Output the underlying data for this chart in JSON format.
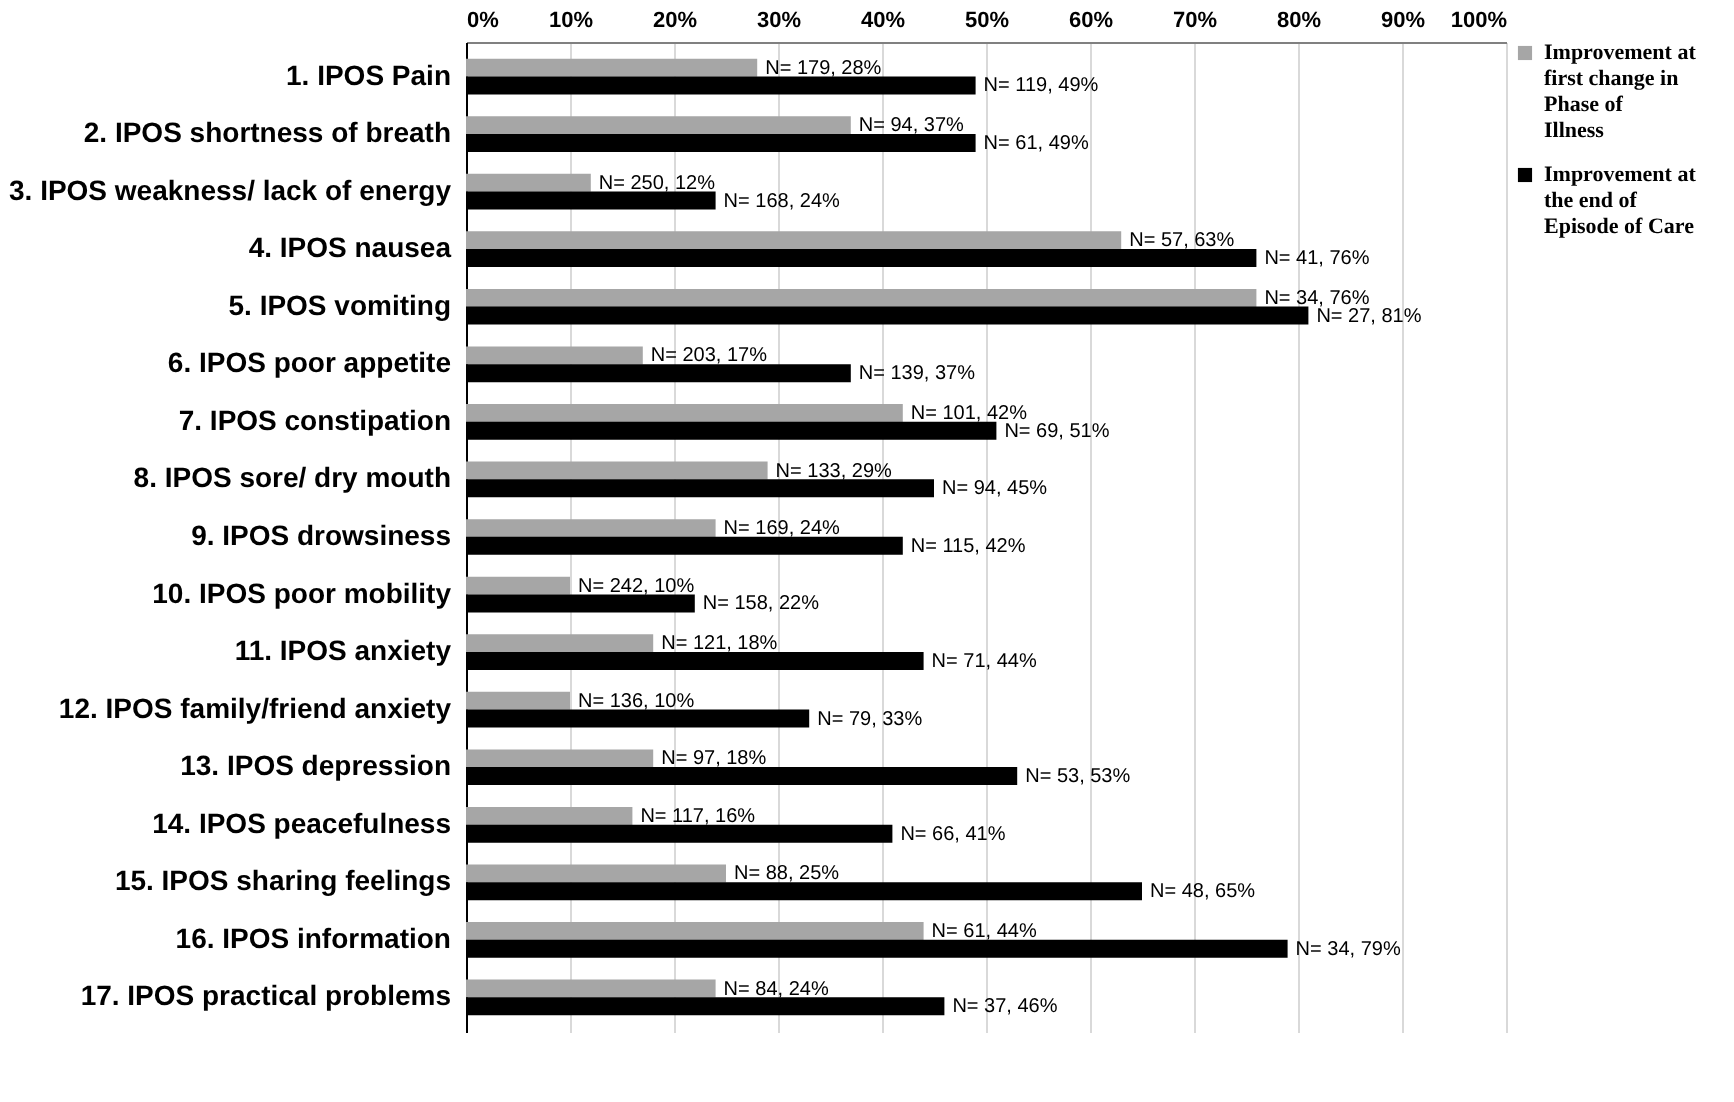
{
  "chart_data": {
    "type": "bar",
    "orientation": "horizontal",
    "categories": [
      "1. IPOS Pain",
      "2. IPOS shortness of breath",
      "3. IPOS weakness/ lack of energy",
      "4. IPOS nausea",
      "5. IPOS vomiting",
      "6. IPOS poor appetite",
      "7. IPOS constipation",
      "8. IPOS sore/ dry mouth",
      "9. IPOS drowsiness",
      "10.  IPOS  poor mobility",
      "11.  IPOS  anxiety",
      "12.  IPOS  family/friend anxiety",
      "13.  IPOS  depression",
      "14.  IPOS  peacefulness",
      "15.  IPOS  sharing feelings",
      "16.  IPOS  information",
      "17.  IPOS  practical problems"
    ],
    "series": [
      {
        "name": "Improvement at first change in Phase of Illness",
        "color": "#a6a6a6",
        "values": [
          28,
          37,
          12,
          63,
          76,
          17,
          42,
          29,
          24,
          10,
          18,
          10,
          18,
          16,
          25,
          44,
          24
        ],
        "value_labels": [
          "N= 179, 28%",
          "N= 94, 37%",
          "N= 250, 12%",
          "N= 57, 63%",
          "N= 34, 76%",
          "N= 203, 17%",
          "N= 101, 42%",
          "N= 133, 29%",
          "N= 169, 24%",
          "N= 242, 10%",
          "N= 121, 18%",
          "N= 136, 10%",
          "N= 97, 18%",
          "N= 117, 16%",
          "N= 88, 25%",
          "N= 61, 44%",
          "N= 84, 24%"
        ]
      },
      {
        "name": "Improvement at the end of Episode of Care",
        "color": "#000000",
        "values": [
          49,
          49,
          24,
          76,
          81,
          37,
          51,
          45,
          42,
          22,
          44,
          33,
          53,
          41,
          65,
          79,
          46
        ],
        "value_labels": [
          "N= 119, 49%",
          "N= 61, 49%",
          "N= 168, 24%",
          "N= 41, 76%",
          "N= 27, 81%",
          "N= 139, 37%",
          "N= 69, 51%",
          "N= 94, 45%",
          "N= 115, 42%",
          "N= 158, 22%",
          "N= 71, 44%",
          "N= 79, 33%",
          "N= 53, 53%",
          "N= 66, 41%",
          "N= 48, 65%",
          "N= 34, 79%",
          "N= 37, 46%"
        ]
      }
    ],
    "xlim": [
      0,
      100
    ],
    "xticks": [
      {
        "value": 0,
        "label": "0%"
      },
      {
        "value": 10,
        "label": "10%"
      },
      {
        "value": 20,
        "label": "20%"
      },
      {
        "value": 30,
        "label": "30%"
      },
      {
        "value": 40,
        "label": "40%"
      },
      {
        "value": 50,
        "label": "50%"
      },
      {
        "value": 60,
        "label": "60%"
      },
      {
        "value": 70,
        "label": "70%"
      },
      {
        "value": 80,
        "label": "80%"
      },
      {
        "value": 90,
        "label": "90%"
      },
      {
        "value": 100,
        "label": "100%"
      }
    ],
    "grid": "x",
    "legend": "right"
  }
}
